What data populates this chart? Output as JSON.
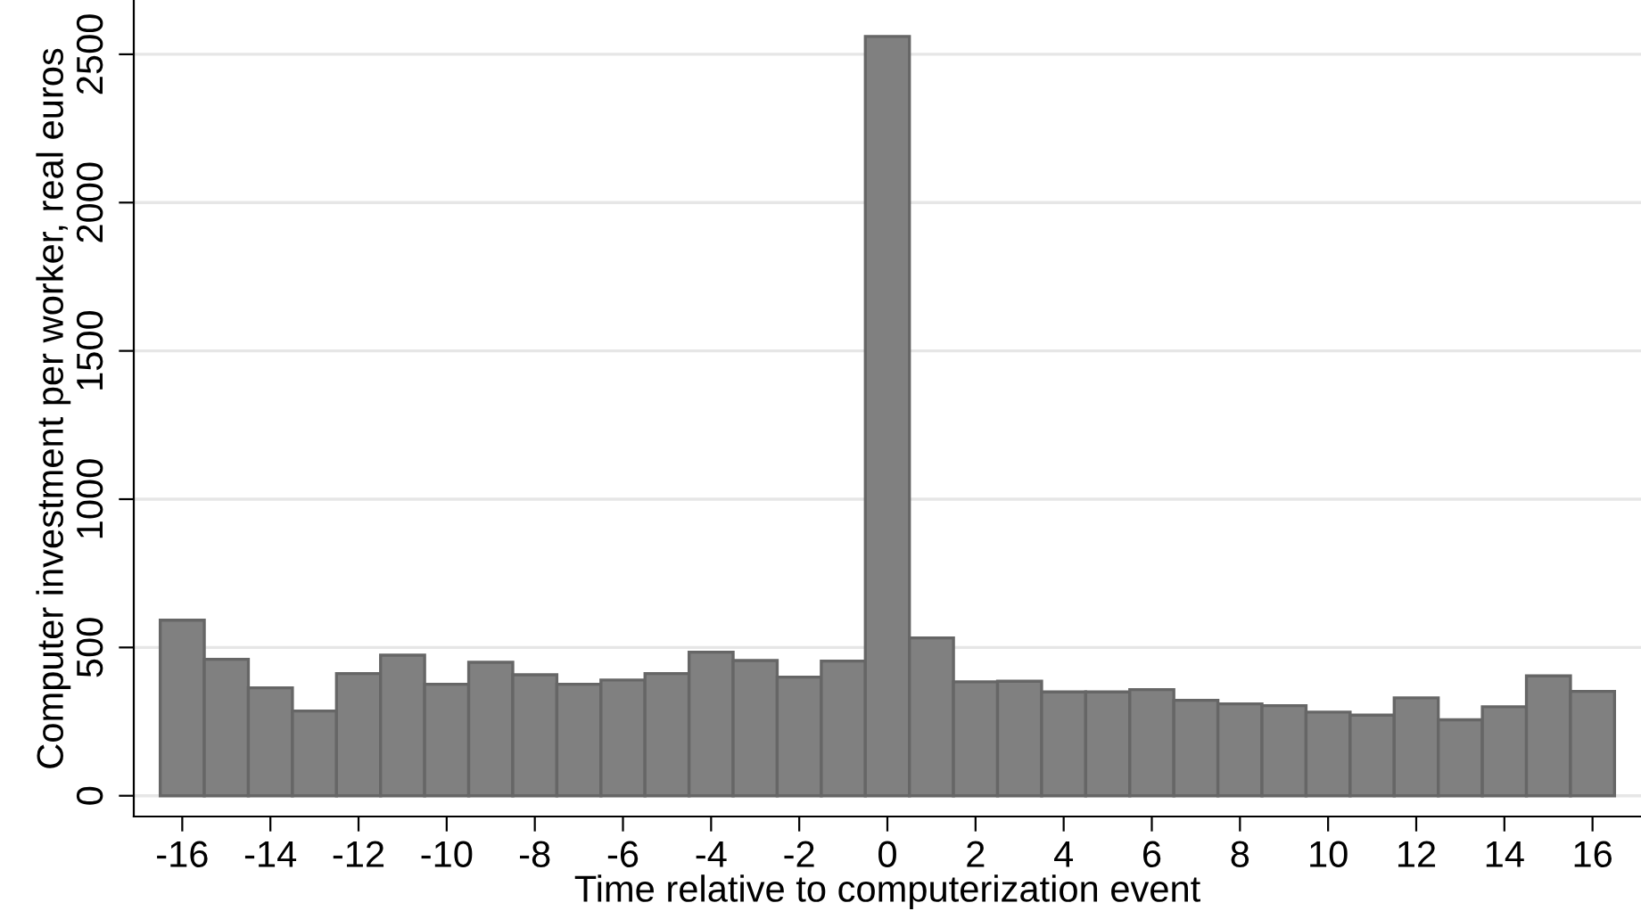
{
  "chart_data": {
    "type": "bar",
    "xlabel": "Time relative to computerization event",
    "ylabel": "Computer investment per worker, real euros",
    "x": [
      -16,
      -15,
      -14,
      -13,
      -12,
      -11,
      -10,
      -9,
      -8,
      -7,
      -6,
      -5,
      -4,
      -3,
      -2,
      -1,
      0,
      1,
      2,
      3,
      4,
      5,
      6,
      7,
      8,
      9,
      10,
      11,
      12,
      13,
      14,
      15,
      16
    ],
    "series": [
      {
        "color": "#808080",
        "values": [
          592,
          460,
          364,
          286,
          412,
          474,
          376,
          450,
          408,
          376,
          390,
          412,
          484,
          456,
          400,
          454,
          2560,
          532,
          384,
          386,
          350,
          350,
          358,
          322,
          310,
          304,
          282,
          272,
          330,
          256,
          300,
          404,
          352
        ]
      }
    ],
    "xlim": [
      -17.1,
      17.1
    ],
    "ylim": [
      -70,
      2680
    ],
    "xticks": [
      -16,
      -14,
      -12,
      -10,
      -8,
      -6,
      -4,
      -2,
      0,
      2,
      4,
      6,
      8,
      10,
      12,
      14,
      16
    ],
    "yticks": [
      0,
      500,
      1000,
      1500,
      2000,
      2500
    ],
    "grid": "y",
    "legend": false
  }
}
